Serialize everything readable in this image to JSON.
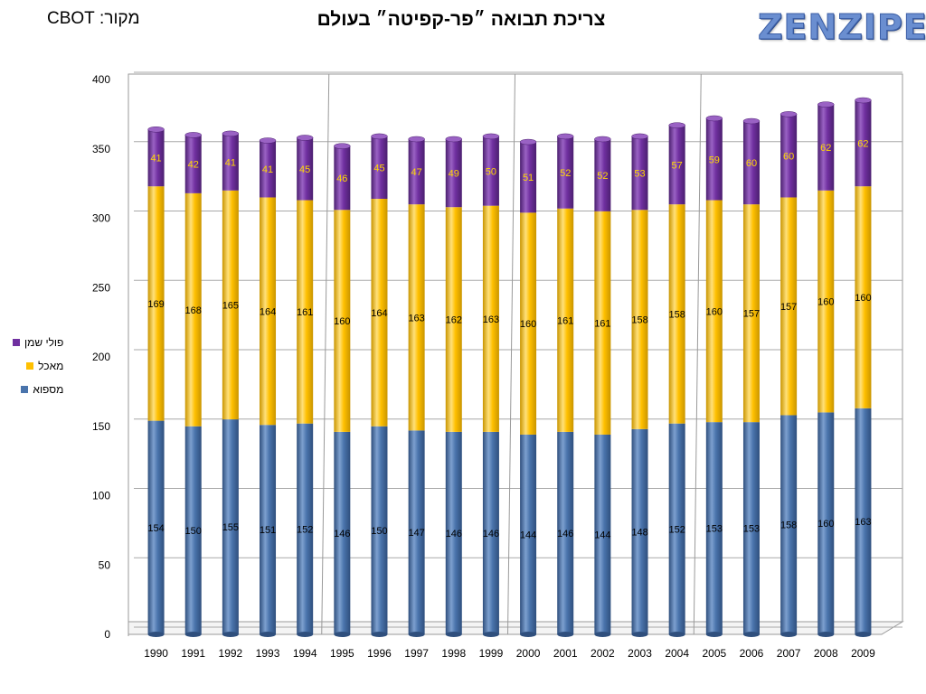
{
  "header": {
    "source": "מקור: CBOT",
    "title": "צריכת תבואה ״פר-קפיטה״ בעולם",
    "logo": "ZENZIPER"
  },
  "colors": {
    "supply": "#4a74ac",
    "food": "#ffc000",
    "polyoil": "#7030a0"
  },
  "chart_data": {
    "type": "bar",
    "stacked": true,
    "categories": [
      "1990",
      "1991",
      "1992",
      "1993",
      "1994",
      "1995",
      "1996",
      "1997",
      "1998",
      "1999",
      "2000",
      "2001",
      "2002",
      "2003",
      "2004",
      "2005",
      "2006",
      "2007",
      "2008",
      "2009"
    ],
    "series": [
      {
        "name": "מספוא",
        "values": [
          154,
          150,
          155,
          151,
          152,
          146,
          150,
          147,
          146,
          146,
          144,
          146,
          144,
          148,
          152,
          153,
          153,
          158,
          160,
          163
        ]
      },
      {
        "name": "מאכל",
        "values": [
          169,
          168,
          165,
          164,
          161,
          160,
          164,
          163,
          162,
          163,
          160,
          161,
          161,
          158,
          158,
          160,
          157,
          157,
          160,
          160
        ]
      },
      {
        "name": "פולי שמן",
        "values": [
          41,
          42,
          41,
          41,
          45,
          46,
          45,
          47,
          49,
          50,
          51,
          52,
          52,
          53,
          57,
          59,
          60,
          60,
          62,
          62
        ]
      }
    ],
    "y_ticks": [
      "0",
      "50",
      "100",
      "150",
      "200",
      "250",
      "300",
      "350",
      "400"
    ],
    "ylim": [
      0,
      400
    ],
    "grid": true,
    "legend_position": "left"
  }
}
